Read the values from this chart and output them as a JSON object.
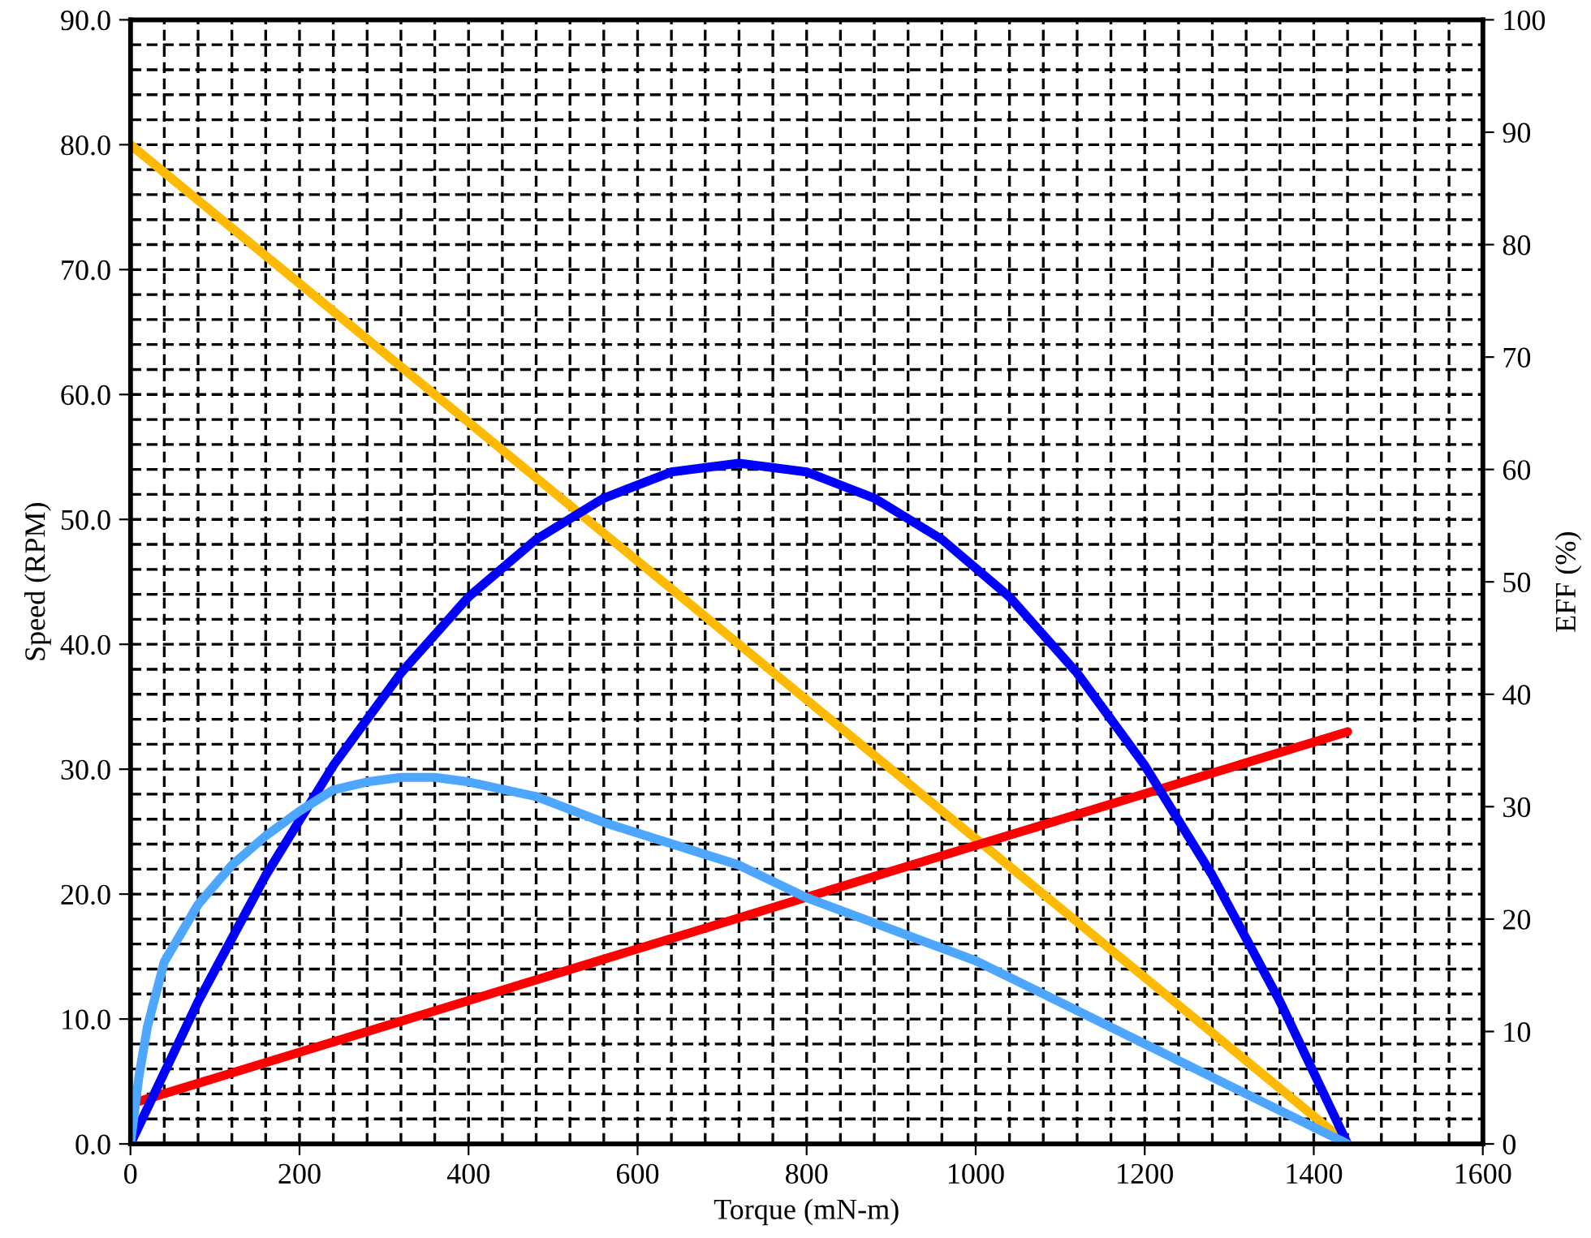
{
  "chart_data": {
    "type": "line",
    "xlabel": "Torque (mN-m)",
    "ylabel": "Speed (RPM)",
    "y2label": "EFF (%)",
    "xlim": [
      0,
      1600
    ],
    "xticks": [
      0,
      200,
      400,
      600,
      800,
      1000,
      1200,
      1400,
      1600
    ],
    "ylim": [
      0,
      90
    ],
    "yticks": [
      {
        "value": 0,
        "label": "0.0"
      },
      {
        "value": 10,
        "label": "10.0"
      },
      {
        "value": 20,
        "label": "20.0"
      },
      {
        "value": 30,
        "label": "30.0"
      },
      {
        "value": 40,
        "label": "40.0"
      },
      {
        "value": 50,
        "label": "50.0"
      },
      {
        "value": 60,
        "label": "60.0"
      },
      {
        "value": 70,
        "label": "70.0"
      },
      {
        "value": 80,
        "label": "80.0"
      },
      {
        "value": 90,
        "label": "90.0"
      }
    ],
    "y2lim": [
      0,
      100
    ],
    "y2ticks": [
      0,
      10,
      20,
      30,
      40,
      50,
      60,
      70,
      80,
      90,
      100
    ],
    "grid": true,
    "marker": "none",
    "line_style": "solid",
    "series": [
      {
        "color": "#ffb900",
        "x": [
          0,
          1440
        ],
        "values": [
          80,
          0
        ]
      },
      {
        "color": "#ff0000",
        "x": [
          0,
          1440
        ],
        "values": [
          3.2,
          33.0
        ]
      },
      {
        "color": "#0000ff",
        "x": [
          0,
          80,
          160,
          240,
          320,
          400,
          480,
          560,
          640,
          720,
          800,
          880,
          960,
          1040,
          1120,
          1200,
          1280,
          1360,
          1440
        ],
        "values": [
          0,
          11.4,
          21.5,
          30.3,
          37.7,
          43.8,
          48.4,
          51.7,
          53.8,
          54.5,
          53.8,
          51.7,
          48.4,
          43.8,
          37.7,
          30.3,
          21.5,
          11.4,
          0
        ]
      },
      {
        "color": "#4da6ff",
        "axis": "y2",
        "x": [
          0,
          10,
          20,
          40,
          80,
          120,
          160,
          200,
          240,
          280,
          320,
          360,
          400,
          480,
          560,
          720,
          800,
          1000,
          1200,
          1440
        ],
        "values": [
          0,
          6,
          10.4,
          16.2,
          21.3,
          24.8,
          27.4,
          29.6,
          31.5,
          32.2,
          32.6,
          32.6,
          32.2,
          30.9,
          28.6,
          24.8,
          21.9,
          16.3,
          8.9,
          0
        ]
      }
    ]
  }
}
